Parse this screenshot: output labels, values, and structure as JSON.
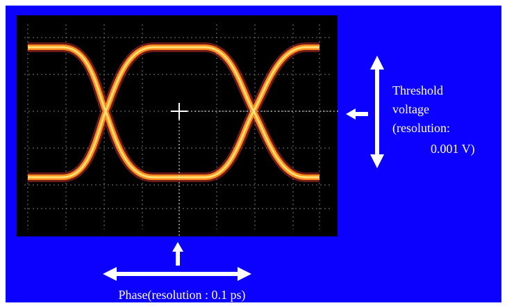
{
  "annotations": {
    "threshold": [
      "Threshold",
      "voltage",
      "(resolution:",
      "0.001 V)"
    ],
    "phase": "Phase(resolution : 0.1 ps)"
  }
}
